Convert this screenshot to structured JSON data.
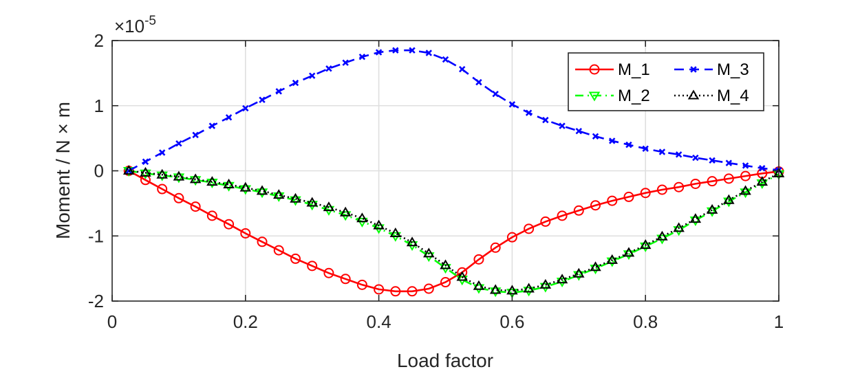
{
  "chart_data": {
    "type": "line",
    "xlabel": "Load factor",
    "ylabel": "Moment / N × m",
    "y_exponent_label": {
      "base": "×10",
      "power": "-5"
    },
    "xlim": [
      0,
      1
    ],
    "ylim": [
      -2,
      2
    ],
    "xticks": [
      0,
      0.2,
      0.4,
      0.6,
      0.8,
      1
    ],
    "xtick_labels": [
      "0",
      "0.2",
      "0.4",
      "0.6",
      "0.8",
      "1"
    ],
    "yticks": [
      -2,
      -1,
      0,
      1,
      2
    ],
    "ytick_labels": [
      "-2",
      "-1",
      "0",
      "1",
      "2"
    ],
    "grid": true,
    "legend_position": "top-right",
    "x": [
      0.025,
      0.05,
      0.075,
      0.1,
      0.125,
      0.15,
      0.175,
      0.2,
      0.225,
      0.25,
      0.275,
      0.3,
      0.325,
      0.35,
      0.375,
      0.4,
      0.425,
      0.45,
      0.475,
      0.5,
      0.525,
      0.55,
      0.575,
      0.6,
      0.625,
      0.65,
      0.675,
      0.7,
      0.725,
      0.75,
      0.775,
      0.8,
      0.825,
      0.85,
      0.875,
      0.9,
      0.925,
      0.95,
      0.975,
      1.0
    ],
    "series": [
      {
        "name": "M_1",
        "color": "#ff0000",
        "line_style": "solid",
        "marker": "circle",
        "values": [
          0.0,
          -0.14,
          -0.28,
          -0.42,
          -0.55,
          -0.69,
          -0.82,
          -0.96,
          -1.09,
          -1.22,
          -1.35,
          -1.46,
          -1.57,
          -1.66,
          -1.75,
          -1.82,
          -1.85,
          -1.85,
          -1.81,
          -1.71,
          -1.56,
          -1.36,
          -1.18,
          -1.02,
          -0.89,
          -0.78,
          -0.69,
          -0.61,
          -0.53,
          -0.46,
          -0.4,
          -0.34,
          -0.29,
          -0.25,
          -0.2,
          -0.16,
          -0.12,
          -0.08,
          -0.04,
          -0.01
        ]
      },
      {
        "name": "M_2",
        "color": "#00ff00",
        "line_style": "dashdot",
        "marker": "triangle-down",
        "values": [
          0.0,
          -0.04,
          -0.07,
          -0.1,
          -0.14,
          -0.18,
          -0.23,
          -0.28,
          -0.33,
          -0.39,
          -0.45,
          -0.52,
          -0.6,
          -0.68,
          -0.78,
          -0.88,
          -1.0,
          -1.14,
          -1.31,
          -1.49,
          -1.67,
          -1.8,
          -1.85,
          -1.87,
          -1.84,
          -1.78,
          -1.7,
          -1.6,
          -1.5,
          -1.39,
          -1.28,
          -1.16,
          -1.04,
          -0.91,
          -0.76,
          -0.62,
          -0.47,
          -0.33,
          -0.19,
          -0.05
        ]
      },
      {
        "name": "M_3",
        "color": "#0000ff",
        "line_style": "dashed",
        "marker": "x",
        "values": [
          0.0,
          0.14,
          0.28,
          0.42,
          0.55,
          0.69,
          0.82,
          0.96,
          1.09,
          1.22,
          1.35,
          1.46,
          1.57,
          1.66,
          1.75,
          1.82,
          1.85,
          1.85,
          1.81,
          1.71,
          1.56,
          1.36,
          1.18,
          1.02,
          0.89,
          0.78,
          0.69,
          0.61,
          0.53,
          0.46,
          0.4,
          0.34,
          0.29,
          0.25,
          0.2,
          0.16,
          0.12,
          0.08,
          0.04,
          0.01
        ]
      },
      {
        "name": "M_4",
        "color": "#000000",
        "line_style": "dotted",
        "marker": "triangle-up",
        "values": [
          0.0,
          -0.03,
          -0.06,
          -0.09,
          -0.13,
          -0.17,
          -0.21,
          -0.26,
          -0.31,
          -0.37,
          -0.43,
          -0.49,
          -0.56,
          -0.64,
          -0.73,
          -0.84,
          -0.96,
          -1.1,
          -1.27,
          -1.45,
          -1.63,
          -1.77,
          -1.83,
          -1.84,
          -1.81,
          -1.75,
          -1.67,
          -1.58,
          -1.48,
          -1.37,
          -1.26,
          -1.14,
          -1.01,
          -0.88,
          -0.74,
          -0.6,
          -0.45,
          -0.31,
          -0.17,
          -0.04
        ]
      }
    ]
  }
}
